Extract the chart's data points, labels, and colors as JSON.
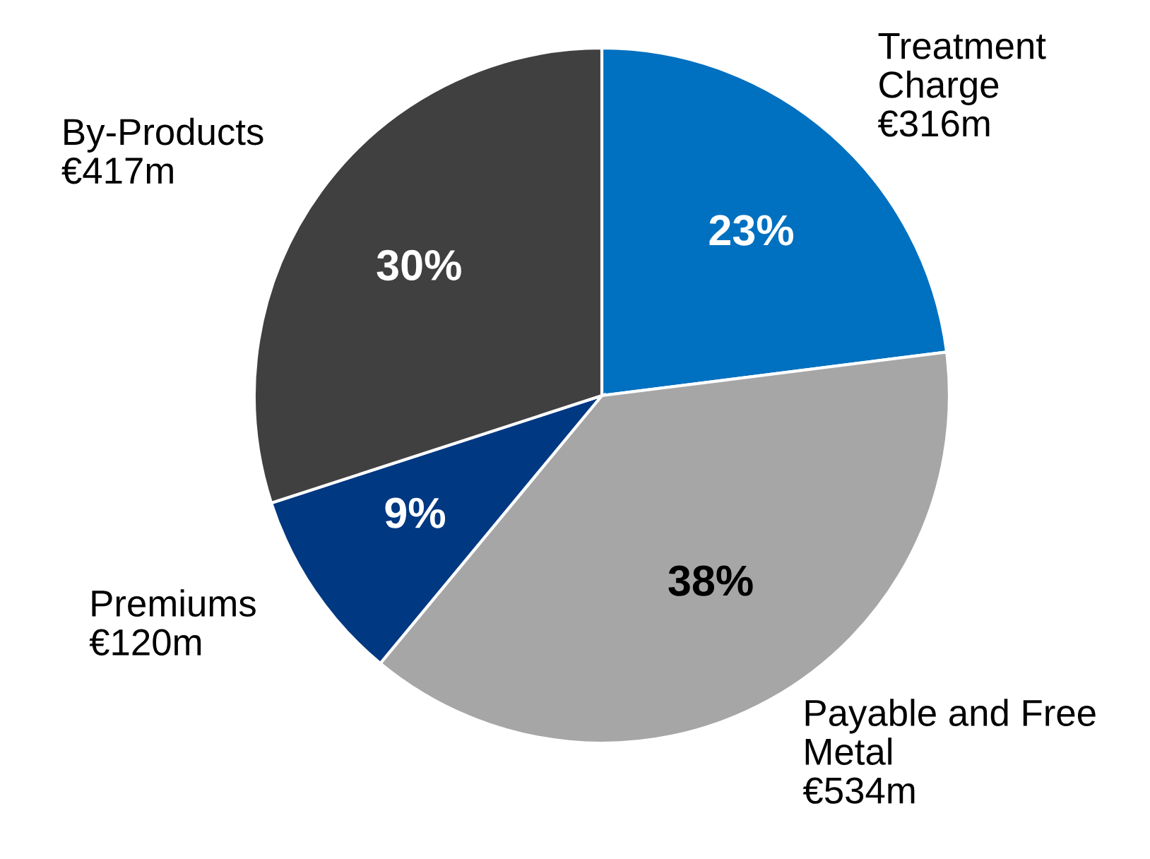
{
  "chart_data": {
    "type": "pie",
    "categories": [
      "Treatment Charge",
      "Payable and Free Metal",
      "Premiums",
      "By-Products"
    ],
    "values": [
      23,
      38,
      9,
      30
    ],
    "value_labels": [
      "23%",
      "38%",
      "9%",
      "30%"
    ],
    "colors": [
      "#0070c0",
      "#a6a6a6",
      "#003882",
      "#404040"
    ],
    "annotations": [
      {
        "text": "€316m",
        "x": "Treatment Charge"
      },
      {
        "text": "€534m",
        "x": "Payable and Free Metal"
      },
      {
        "text": "€120m",
        "x": "Premiums"
      },
      {
        "text": "€417m",
        "x": "By-Products"
      }
    ],
    "legend": false
  }
}
